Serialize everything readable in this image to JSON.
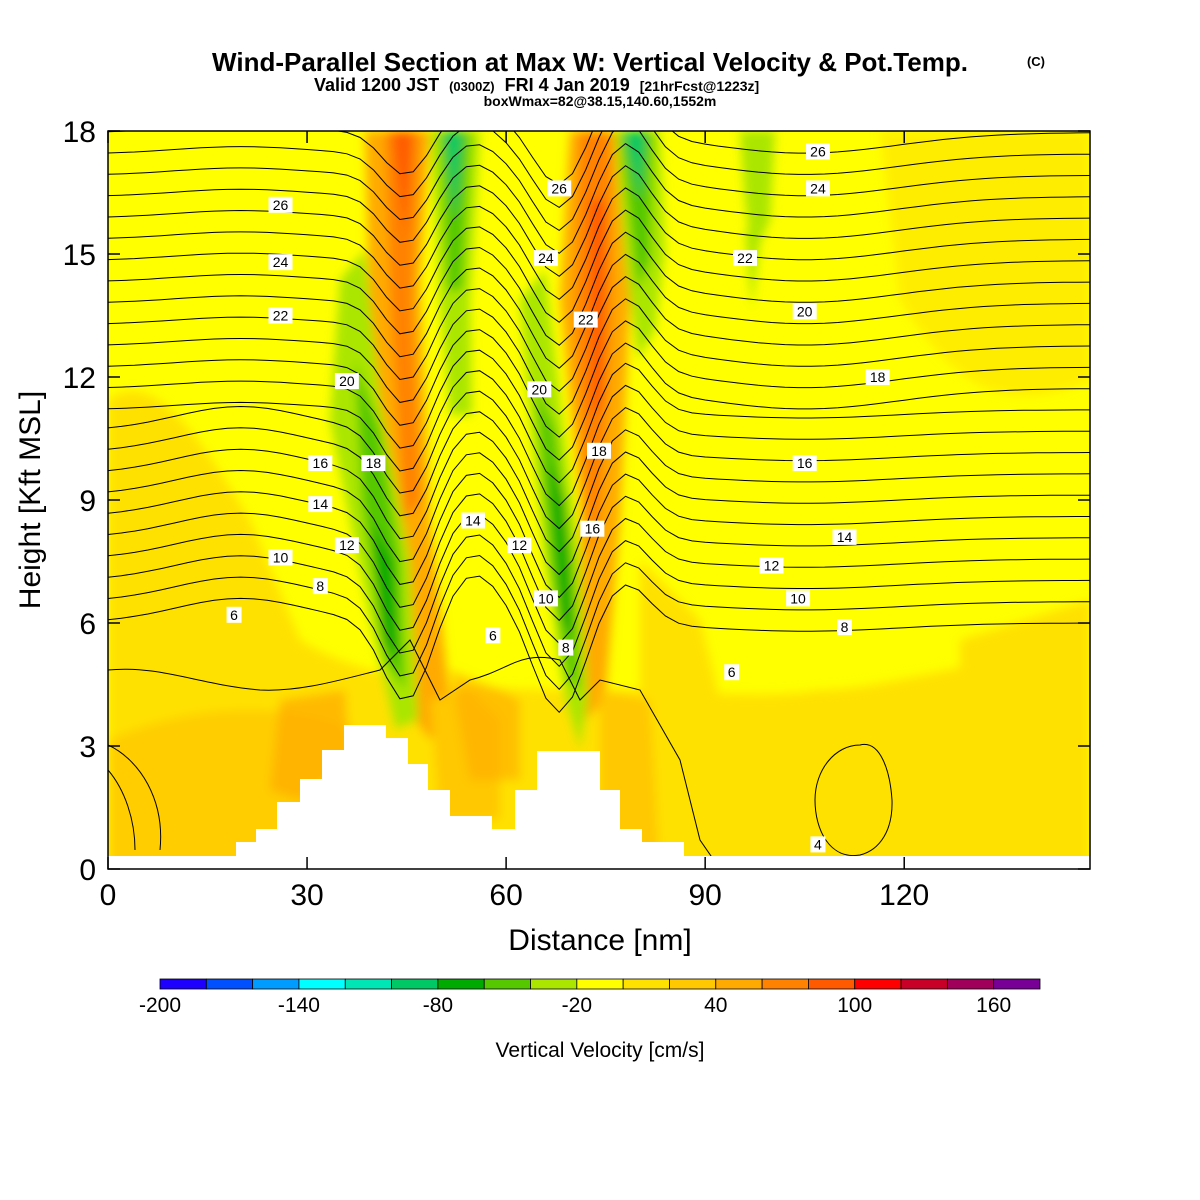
{
  "header": {
    "title": "Wind-Parallel Section at Max W: Vertical Velocity & Pot.Temp.",
    "copyright": "(C)",
    "valid_main": "Valid 1200 JST",
    "valid_utc": "(0300Z)",
    "valid_date": "FRI 4 Jan 2019",
    "forecast": "[21hrFcst@1223z]",
    "boxmax": "boxWmax=82@38.15,140.60,1552m"
  },
  "chart_data": {
    "type": "heatmap",
    "xlabel": "Distance [nm]",
    "ylabel": "Height [Kft MSL]",
    "xlim": [
      0,
      148
    ],
    "ylim": [
      0,
      18
    ],
    "xticks": [
      0,
      30,
      60,
      90,
      120
    ],
    "yticks": [
      0,
      3,
      6,
      9,
      12,
      15,
      18
    ],
    "colorbar": {
      "label": "Vertical Velocity [cm/s]",
      "min": -200,
      "max": 180,
      "step": 20,
      "tick_labels": [
        "-200",
        "-140",
        "-80",
        "-20",
        "40",
        "100",
        "160"
      ],
      "colors": [
        "#1e00ff",
        "#0050ff",
        "#009cff",
        "#00ffff",
        "#00e6b4",
        "#00c864",
        "#00aa00",
        "#55c800",
        "#aae600",
        "#ffff00",
        "#ffe100",
        "#ffc800",
        "#ffaa00",
        "#ff8200",
        "#ff5a00",
        "#ff0000",
        "#c80028",
        "#a0005a",
        "#780096"
      ]
    },
    "theta_contour_labels": [
      {
        "value": "4",
        "x": 107,
        "y": 0.6
      },
      {
        "value": "6",
        "x": 19,
        "y": 6.2
      },
      {
        "value": "6",
        "x": 58,
        "y": 5.7
      },
      {
        "value": "6",
        "x": 94,
        "y": 4.8
      },
      {
        "value": "8",
        "x": 32,
        "y": 6.9
      },
      {
        "value": "8",
        "x": 69,
        "y": 5.4
      },
      {
        "value": "8",
        "x": 111,
        "y": 5.9
      },
      {
        "value": "10",
        "x": 26,
        "y": 7.6
      },
      {
        "value": "10",
        "x": 66,
        "y": 6.6
      },
      {
        "value": "10",
        "x": 104,
        "y": 6.6
      },
      {
        "value": "12",
        "x": 36,
        "y": 7.9
      },
      {
        "value": "12",
        "x": 62,
        "y": 7.9
      },
      {
        "value": "12",
        "x": 100,
        "y": 7.4
      },
      {
        "value": "14",
        "x": 32,
        "y": 8.9
      },
      {
        "value": "14",
        "x": 55,
        "y": 8.5
      },
      {
        "value": "14",
        "x": 111,
        "y": 8.1
      },
      {
        "value": "16",
        "x": 32,
        "y": 9.9
      },
      {
        "value": "16",
        "x": 73,
        "y": 8.3
      },
      {
        "value": "16",
        "x": 105,
        "y": 9.9
      },
      {
        "value": "18",
        "x": 40,
        "y": 9.9
      },
      {
        "value": "18",
        "x": 74,
        "y": 10.2
      },
      {
        "value": "18",
        "x": 116,
        "y": 12.0
      },
      {
        "value": "20",
        "x": 36,
        "y": 11.9
      },
      {
        "value": "20",
        "x": 65,
        "y": 11.7
      },
      {
        "value": "20",
        "x": 105,
        "y": 13.6
      },
      {
        "value": "22",
        "x": 26,
        "y": 13.5
      },
      {
        "value": "22",
        "x": 72,
        "y": 13.4
      },
      {
        "value": "22",
        "x": 96,
        "y": 14.9
      },
      {
        "value": "24",
        "x": 26,
        "y": 14.8
      },
      {
        "value": "24",
        "x": 66,
        "y": 14.9
      },
      {
        "value": "24",
        "x": 107,
        "y": 16.6
      },
      {
        "value": "26",
        "x": 26,
        "y": 16.2
      },
      {
        "value": "26",
        "x": 68,
        "y": 16.6
      },
      {
        "value": "26",
        "x": 107,
        "y": 17.5
      }
    ]
  }
}
